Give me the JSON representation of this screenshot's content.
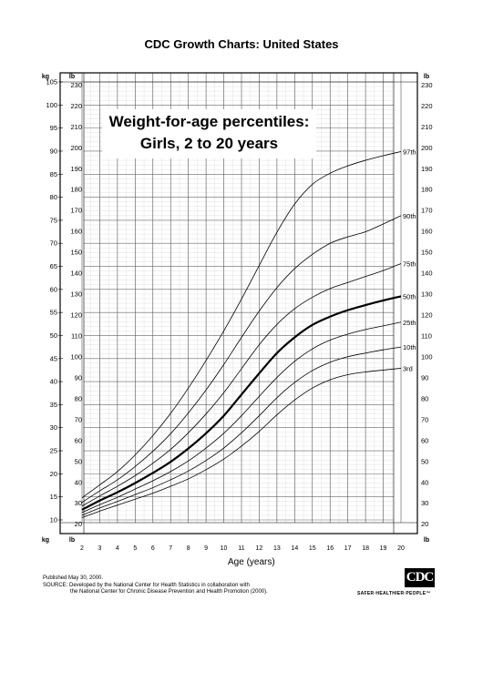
{
  "header": {
    "title": "CDC Growth Charts: United States"
  },
  "inset": {
    "line1": "Weight-for-age percentiles:",
    "line2": "Girls, 2 to 20 years"
  },
  "footer": {
    "published": "Published May 30, 2000.",
    "source_line1": "SOURCE: Developed by the National Center for Health Statistics in collaboration with",
    "source_line2": "the National Center for Chronic Disease Prevention and Health Promotion (2000)."
  },
  "logo": {
    "mark": "CDC",
    "tagline": "SAFER·HEALTHIER·PEOPLE™"
  },
  "chart_data": {
    "type": "line",
    "xlabel": "Age (years)",
    "y_unit_left": "kg",
    "y_unit_right": "lb",
    "xlim": [
      2,
      20
    ],
    "ylim_kg": [
      10,
      105
    ],
    "ylim_lb": [
      20,
      230
    ],
    "kg_ticks": [
      10,
      15,
      20,
      25,
      30,
      35,
      40,
      45,
      50,
      55,
      60,
      65,
      70,
      75,
      80,
      85,
      90,
      95,
      100,
      105
    ],
    "lb_ticks": [
      20,
      30,
      40,
      50,
      60,
      70,
      80,
      90,
      100,
      110,
      120,
      130,
      140,
      150,
      160,
      170,
      180,
      190,
      200,
      210,
      220,
      230
    ],
    "age_ticks": [
      "2",
      "3",
      "4",
      "5",
      "6",
      "7",
      "8",
      "9",
      "10",
      "11",
      "12",
      "13",
      "14",
      "15",
      "16",
      "17",
      "18",
      "19",
      "20"
    ],
    "grid": true,
    "x": [
      2,
      3,
      4,
      5,
      6,
      7,
      8,
      9,
      10,
      11,
      12,
      13,
      14,
      15,
      16,
      17,
      18,
      19,
      20
    ],
    "series": [
      {
        "name": "3rd",
        "values": [
          10.5,
          11.9,
          13.2,
          14.5,
          15.8,
          17.3,
          18.9,
          20.9,
          23.2,
          26.0,
          29.2,
          32.8,
          36.0,
          38.6,
          40.4,
          41.5,
          42.1,
          42.5,
          42.9
        ]
      },
      {
        "name": "10th",
        "values": [
          11.0,
          12.6,
          14.0,
          15.5,
          17.0,
          18.7,
          20.6,
          22.9,
          25.6,
          28.9,
          32.6,
          36.5,
          39.8,
          42.4,
          44.2,
          45.4,
          46.2,
          46.9,
          47.5
        ]
      },
      {
        "name": "25th",
        "values": [
          11.6,
          13.3,
          14.9,
          16.7,
          18.5,
          20.5,
          22.8,
          25.6,
          28.8,
          32.6,
          36.8,
          40.9,
          44.4,
          47.1,
          49.0,
          50.3,
          51.3,
          52.1,
          52.9
        ]
      },
      {
        "name": "50th",
        "values": [
          12.2,
          14.2,
          16.0,
          18.0,
          20.2,
          22.6,
          25.5,
          28.8,
          32.6,
          37.2,
          41.8,
          46.2,
          49.6,
          52.3,
          54.1,
          55.5,
          56.6,
          57.6,
          58.5
        ]
      },
      {
        "name": "75th",
        "values": [
          13.0,
          15.2,
          17.3,
          19.6,
          22.3,
          25.3,
          28.9,
          33.0,
          37.6,
          42.8,
          48.0,
          52.4,
          55.8,
          58.3,
          60.2,
          61.5,
          62.8,
          64.1,
          65.6
        ]
      },
      {
        "name": "90th",
        "values": [
          13.8,
          16.3,
          18.7,
          21.6,
          24.9,
          28.7,
          33.2,
          38.2,
          43.7,
          49.6,
          55.3,
          60.4,
          64.5,
          67.6,
          70.0,
          71.4,
          72.5,
          74.2,
          76.0
        ]
      },
      {
        "name": "97th",
        "values": [
          14.8,
          17.6,
          20.5,
          24.1,
          28.3,
          33.1,
          38.6,
          44.6,
          51.0,
          57.9,
          65.2,
          72.4,
          78.5,
          82.8,
          85.2,
          86.8,
          88.0,
          89.0,
          89.9
        ]
      }
    ]
  }
}
